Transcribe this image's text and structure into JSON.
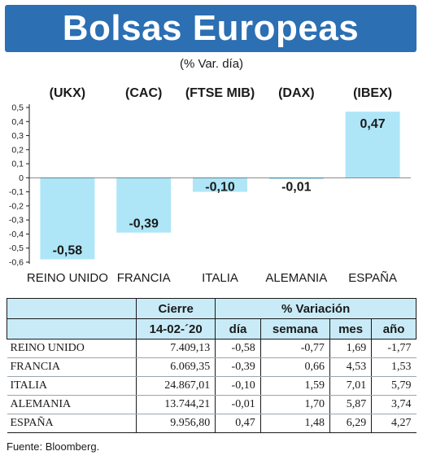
{
  "banner": {
    "title": "Bolsas Europeas"
  },
  "colors": {
    "banner": "#2c6fb3",
    "bar": "#aee6f8",
    "table_header": "#c9ebf7"
  },
  "chart_data": {
    "type": "bar",
    "subtitle": "(% Var. día)",
    "index_labels": [
      "(UKX)",
      "(CAC)",
      "(FTSE MIB)",
      "(DAX)",
      "(IBEX)"
    ],
    "categories": [
      "REINO UNIDO",
      "FRANCIA",
      "ITALIA",
      "ALEMANIA",
      "ESPAÑA"
    ],
    "values": [
      -0.58,
      -0.39,
      -0.1,
      -0.01,
      0.47
    ],
    "value_labels": [
      "-0,58",
      "-0,39",
      "-0,10",
      "-0,01",
      "0,47"
    ],
    "yticks": [
      0.5,
      0.4,
      0.3,
      0.2,
      0.1,
      0,
      -0.1,
      -0.2,
      -0.3,
      -0.4,
      -0.5,
      -0.6
    ],
    "ytick_labels": [
      "0,5",
      "0,4",
      "0,3",
      "0,2",
      "0,1",
      "0",
      "-0,1",
      "-0,2",
      "-0,3",
      "-0,4",
      "-0,5",
      "-0,6"
    ],
    "ylim": [
      -0.6,
      0.5
    ],
    "grid": false
  },
  "table": {
    "group_headers": [
      "Cierre",
      "% Variación"
    ],
    "columns": [
      "14-02-´20",
      "día",
      "semana",
      "mes",
      "año"
    ],
    "rows": [
      {
        "name": "REINO UNIDO",
        "cierre": "7.409,13",
        "dia": "-0,58",
        "semana": "-0,77",
        "mes": "1,69",
        "ano": "-1,77"
      },
      {
        "name": "FRANCIA",
        "cierre": "6.069,35",
        "dia": "-0,39",
        "semana": "0,66",
        "mes": "4,53",
        "ano": "1,53"
      },
      {
        "name": "ITALIA",
        "cierre": "24.867,01",
        "dia": "-0,10",
        "semana": "1,59",
        "mes": "7,01",
        "ano": "5,79"
      },
      {
        "name": "ALEMANIA",
        "cierre": "13.744,21",
        "dia": "-0,01",
        "semana": "1,70",
        "mes": "5,87",
        "ano": "3,74"
      },
      {
        "name": "ESPAÑA",
        "cierre": "9.956,80",
        "dia": "0,47",
        "semana": "1,48",
        "mes": "6,29",
        "ano": "4,27"
      }
    ]
  },
  "source": "Fuente: Bloomberg."
}
